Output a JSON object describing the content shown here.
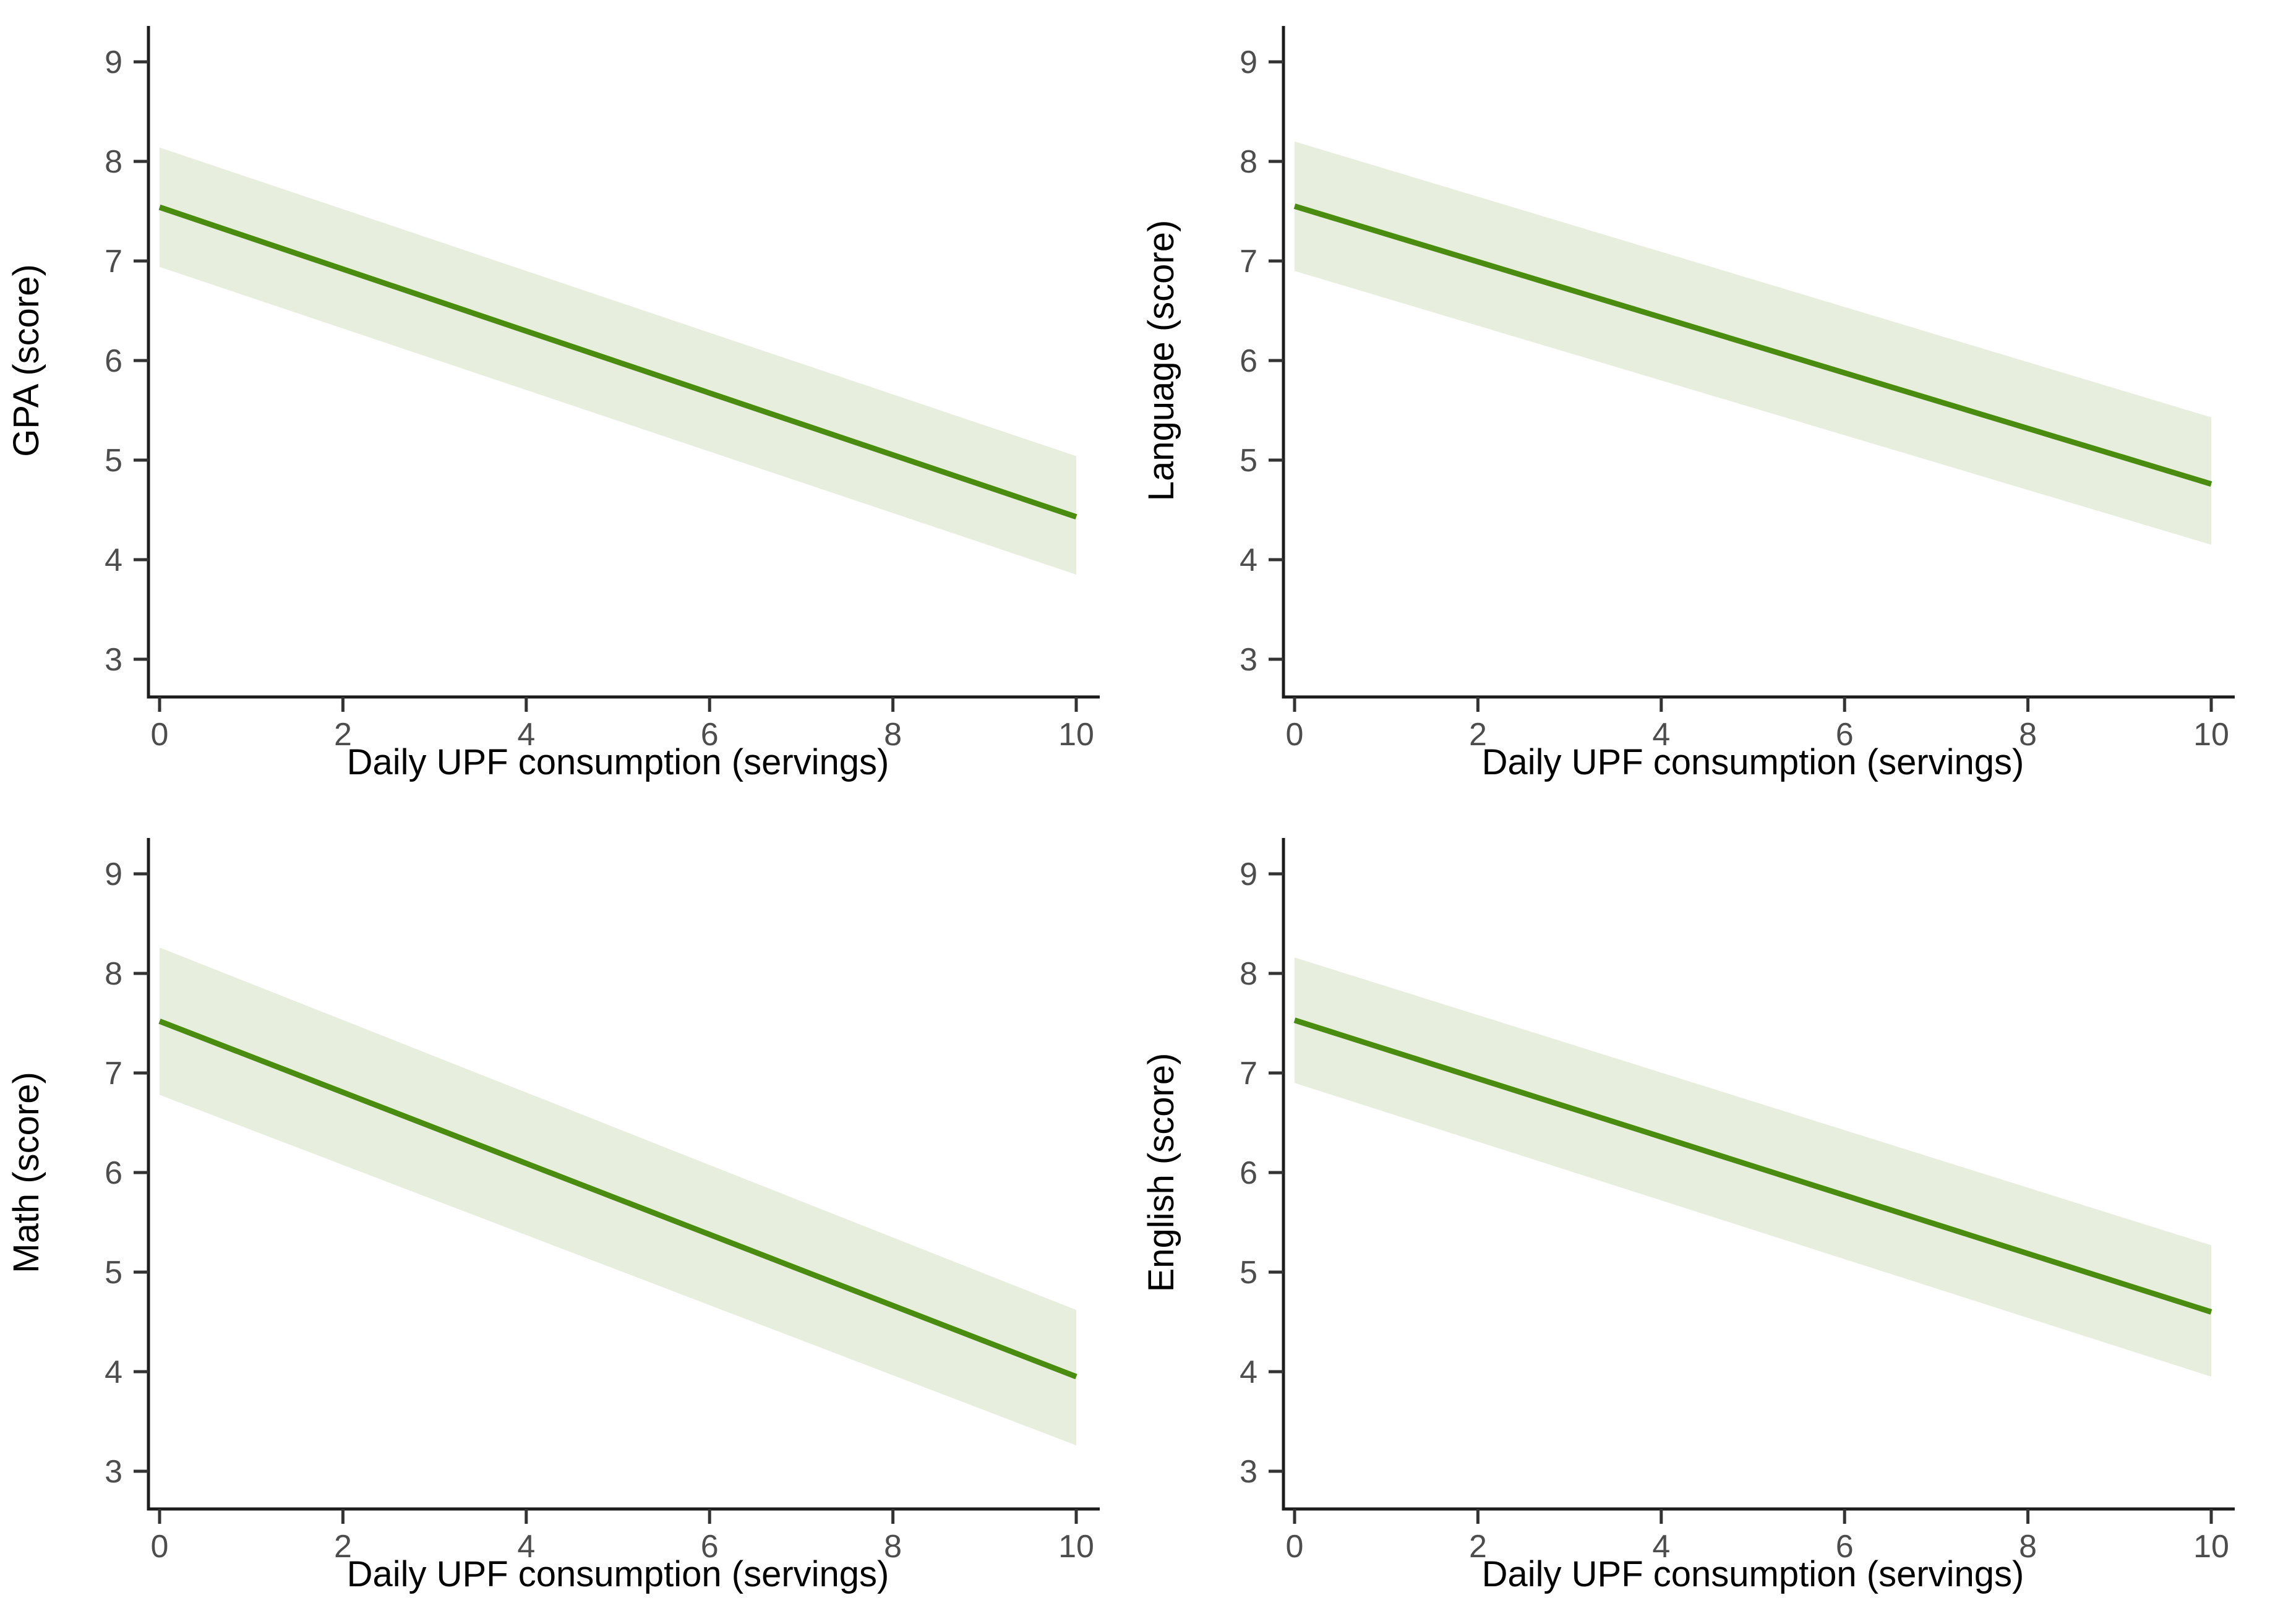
{
  "page": {
    "background": "#ffffff",
    "layout": "2x2 panel of regression plots"
  },
  "styles": {
    "line_color": "#4a8c10",
    "band_color": "#e8eede",
    "axis_line_color": "#1c1c1c",
    "tick_mark_color": "#333333",
    "tick_label_color": "#4d4d4d",
    "axis_title_color": "#000000"
  },
  "chart_data": [
    {
      "type": "line",
      "position": "top-left",
      "key": "gpa",
      "ylabel": "GPA (score)",
      "xlabel": "Daily UPF consumption (servings)",
      "x": [
        0,
        10
      ],
      "line_y": [
        7.54,
        4.43
      ],
      "band_lower": [
        6.94,
        3.85
      ],
      "band_upper": [
        8.14,
        5.04
      ],
      "xticks": [
        0,
        2,
        4,
        6,
        8,
        10
      ],
      "yticks": [
        3,
        4,
        5,
        6,
        7,
        8,
        9
      ],
      "xlim": [
        0,
        10
      ],
      "ylim": [
        3,
        9
      ],
      "grid": false,
      "legend": false
    },
    {
      "type": "line",
      "position": "top-right",
      "key": "language",
      "ylabel": "Language (score)",
      "xlabel": "Daily UPF consumption (servings)",
      "x": [
        0,
        10
      ],
      "line_y": [
        7.55,
        4.76
      ],
      "band_lower": [
        6.9,
        4.15
      ],
      "band_upper": [
        8.2,
        5.43
      ],
      "xticks": [
        0,
        2,
        4,
        6,
        8,
        10
      ],
      "yticks": [
        3,
        4,
        5,
        6,
        7,
        8,
        9
      ],
      "xlim": [
        0,
        10
      ],
      "ylim": [
        3,
        9
      ],
      "grid": false,
      "legend": false
    },
    {
      "type": "line",
      "position": "bottom-left",
      "key": "math",
      "ylabel": "Math (score)",
      "xlabel": "Daily UPF consumption (servings)",
      "x": [
        0,
        10
      ],
      "line_y": [
        7.52,
        3.95
      ],
      "band_lower": [
        6.78,
        3.26
      ],
      "band_upper": [
        8.26,
        4.62
      ],
      "xticks": [
        0,
        2,
        4,
        6,
        8,
        10
      ],
      "yticks": [
        3,
        4,
        5,
        6,
        7,
        8,
        9
      ],
      "xlim": [
        0,
        10
      ],
      "ylim": [
        3,
        9
      ],
      "grid": false,
      "legend": false
    },
    {
      "type": "line",
      "position": "bottom-right",
      "key": "english",
      "ylabel": "English (score)",
      "xlabel": "Daily UPF consumption (servings)",
      "x": [
        0,
        10
      ],
      "line_y": [
        7.53,
        4.6
      ],
      "band_lower": [
        6.9,
        3.95
      ],
      "band_upper": [
        8.16,
        5.27
      ],
      "xticks": [
        0,
        2,
        4,
        6,
        8,
        10
      ],
      "yticks": [
        3,
        4,
        5,
        6,
        7,
        8,
        9
      ],
      "xlim": [
        0,
        10
      ],
      "ylim": [
        3,
        9
      ],
      "grid": false,
      "legend": false
    }
  ]
}
